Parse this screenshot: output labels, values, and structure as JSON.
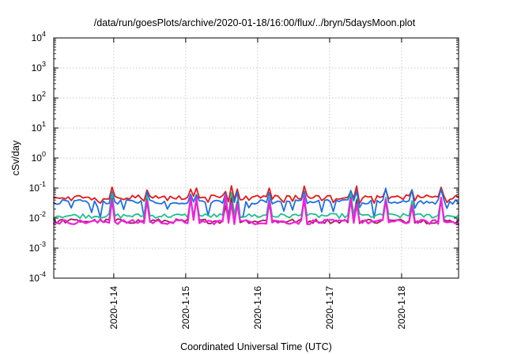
{
  "chart_data": {
    "type": "line",
    "title": "/data/run/goesPlots/archive/2020-01-18/16:00/flux/../bryn/5daysMoon.plot",
    "xlabel": "Coordinated Universal Time (UTC)",
    "ylabel": "cSv/day",
    "yscale": "log",
    "ylim": [
      0.0001,
      10000
    ],
    "xlim": [
      "2020-01-13 04:00",
      "2020-01-18 19:00"
    ],
    "grid": true,
    "x_ticks": [
      {
        "label": "2020-1-14",
        "x": "2020-01-14"
      },
      {
        "label": "2020-1-15",
        "x": "2020-01-15"
      },
      {
        "label": "2020-1-16",
        "x": "2020-01-16"
      },
      {
        "label": "2020-1-17",
        "x": "2020-01-17"
      },
      {
        "label": "2020-1-18",
        "x": "2020-01-18"
      }
    ],
    "y_ticks": [
      {
        "base": "10",
        "exp": "-4",
        "value": 0.0001
      },
      {
        "base": "10",
        "exp": "-3",
        "value": 0.001
      },
      {
        "base": "10",
        "exp": "-2",
        "value": 0.01
      },
      {
        "base": "10",
        "exp": "-1",
        "value": 0.1
      },
      {
        "base": "10",
        "exp": "0",
        "value": 1
      },
      {
        "base": "10",
        "exp": "1",
        "value": 10
      },
      {
        "base": "10",
        "exp": "2",
        "value": 100
      },
      {
        "base": "10",
        "exp": "3",
        "value": 1000
      },
      {
        "base": "10",
        "exp": "4",
        "value": 10000
      }
    ],
    "series": [
      {
        "color": "#e41a1c",
        "typical": 0.05,
        "spike_max": 0.12,
        "dip_min": 0.03
      },
      {
        "color": "#1f6fe0",
        "typical": 0.035,
        "spike_max": 0.1,
        "dip_min": 0.01
      },
      {
        "color": "#1fbf8f",
        "typical": 0.012,
        "spike_max": 0.07,
        "dip_min": 0.009
      },
      {
        "color": "#a0204f",
        "typical": 0.008,
        "spike_max": 0.05,
        "dip_min": 0.006
      },
      {
        "color": "#ee22dd",
        "typical": 0.0075,
        "spike_max": 0.06,
        "dip_min": 0.005
      }
    ]
  }
}
